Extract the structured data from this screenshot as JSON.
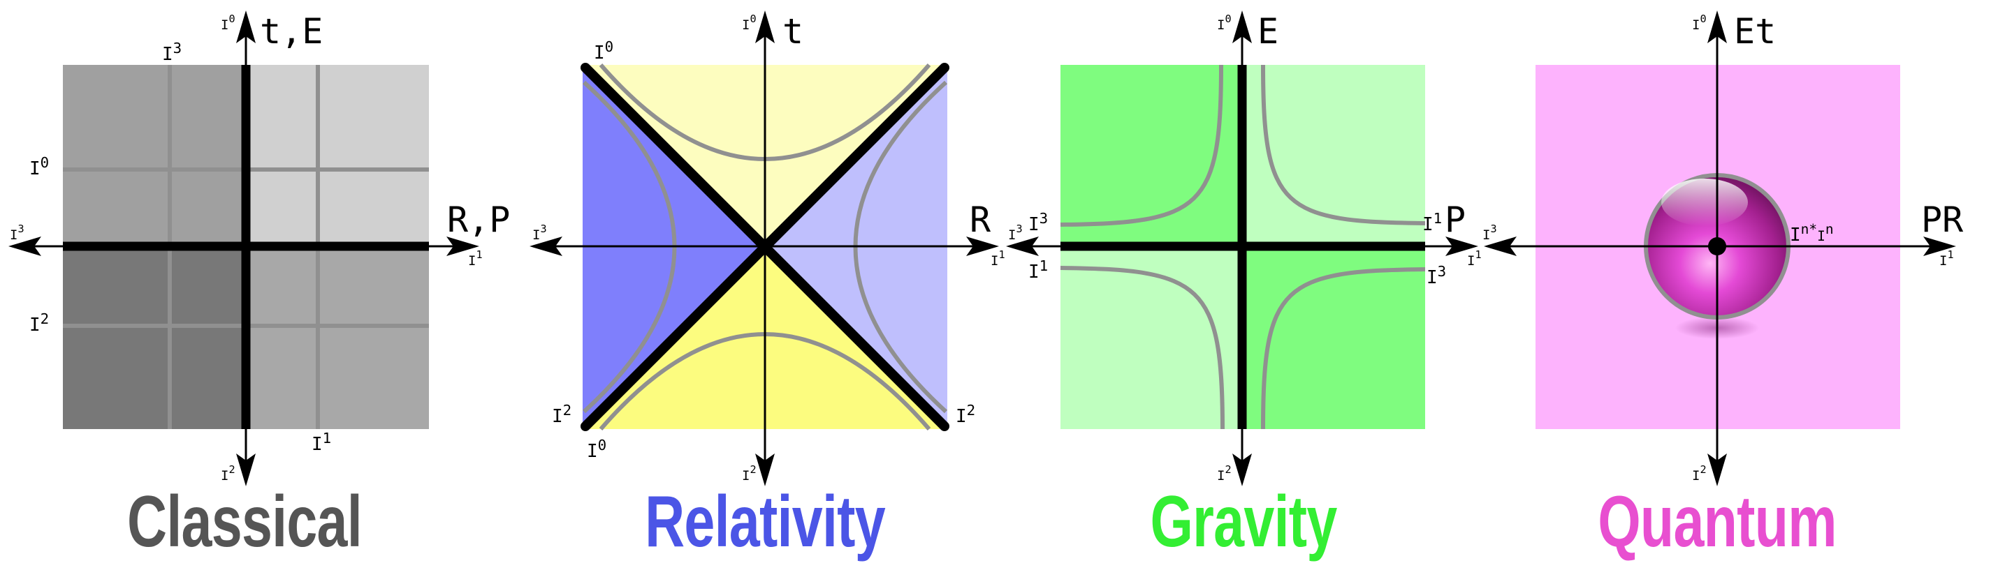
{
  "panels": [
    {
      "id": "classical",
      "title": "Classical",
      "title_color": "#555555",
      "axis_top": "t,E",
      "axis_right": "R,P",
      "labels": {
        "top": "I0",
        "bottom": "I2",
        "left": "I3",
        "right": "I1",
        "q_i3": "I3",
        "q_i0": "I0",
        "q_i2": "I2",
        "q_i1": "I1"
      },
      "colors": {
        "tl": "#a0a0a0",
        "tr": "#d0d0d0",
        "bl": "#787878",
        "br": "#a8a8a8",
        "grid": "#909090"
      }
    },
    {
      "id": "relativity",
      "title": "Relativity",
      "title_color": "#4b55e6",
      "axis_top": "t",
      "axis_right": "R",
      "labels": {
        "top": "I0",
        "bottom": "I2",
        "left": "I3",
        "right": "I1",
        "c_tl": "I0",
        "c_bl": "I2",
        "c_bl2": "I0",
        "c_br": "I2"
      },
      "colors": {
        "top": "#fdfdbf",
        "bottom": "#fcfc7f",
        "left": "#7f7ffc",
        "right": "#bfbffd"
      }
    },
    {
      "id": "gravity",
      "title": "Gravity",
      "title_color": "#33ee33",
      "axis_top": "E",
      "axis_right": "P",
      "labels": {
        "top": "I0",
        "bottom": "I2",
        "left": "I3",
        "right": "I1",
        "g_l_top": "I3",
        "g_l_bot": "I1",
        "g_r_top": "I1",
        "g_r_bot": "I3"
      },
      "colors": {
        "dark": "#7ffc7f",
        "light": "#bfffbf"
      }
    },
    {
      "id": "quantum",
      "title": "Quantum",
      "title_color": "#e84fd0",
      "axis_top": "Et",
      "axis_right": "PR",
      "labels": {
        "top": "I0",
        "bottom": "I2",
        "left": "I3",
        "right": "I1",
        "sphere": "In*In"
      },
      "colors": {
        "bg": "#fdb3fd",
        "sphere": "#d23fc4"
      }
    }
  ]
}
